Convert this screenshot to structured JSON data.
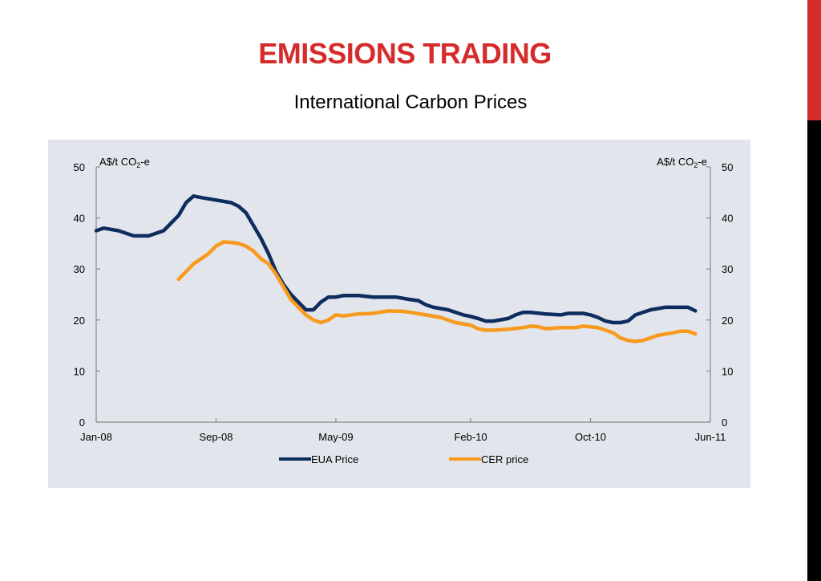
{
  "page": {
    "title": "EMISSIONS TRADING",
    "subtitle": "International Carbon Prices"
  },
  "colors": {
    "accent_red": "#d62b2b",
    "eua": "#0d2d5e",
    "cer": "#f79a1e",
    "panel": "#e2e5ec"
  },
  "chart_data": {
    "type": "line",
    "left_axis_unit": "A$/t CO2-e",
    "right_axis_unit": "A$/t CO2-e",
    "ylim": [
      0,
      50
    ],
    "yticks": [
      0,
      10,
      20,
      30,
      40,
      50
    ],
    "x_tick_labels": [
      "Jan-08",
      "Sep-08",
      "May-09",
      "Feb-10",
      "Oct-10",
      "Jun-11"
    ],
    "x_tick_months": [
      0,
      8,
      16,
      25,
      33,
      41
    ],
    "x_range_months": [
      0,
      41
    ],
    "grid": false,
    "legend_position": "bottom",
    "series": [
      {
        "name": "EUA Price",
        "color": "#0d2d5e",
        "points": [
          [
            0,
            37.5
          ],
          [
            0.5,
            38
          ],
          [
            1.5,
            37.5
          ],
          [
            2,
            37
          ],
          [
            2.5,
            36.5
          ],
          [
            3.5,
            36.5
          ],
          [
            4.5,
            37.5
          ],
          [
            5,
            39
          ],
          [
            5.5,
            40.5
          ],
          [
            6,
            43
          ],
          [
            6.5,
            44.3
          ],
          [
            7,
            44
          ],
          [
            8,
            43.5
          ],
          [
            9,
            43
          ],
          [
            9.5,
            42.3
          ],
          [
            10,
            41
          ],
          [
            10.5,
            38.5
          ],
          [
            11,
            36
          ],
          [
            11.5,
            33
          ],
          [
            12,
            29.5
          ],
          [
            12.5,
            27
          ],
          [
            13,
            25
          ],
          [
            13.5,
            23.5
          ],
          [
            14,
            22
          ],
          [
            14.5,
            22
          ],
          [
            15,
            23.5
          ],
          [
            15.5,
            24.5
          ],
          [
            16,
            24.5
          ],
          [
            16.5,
            24.8
          ],
          [
            17.5,
            24.8
          ],
          [
            18.5,
            24.5
          ],
          [
            19.5,
            24.5
          ],
          [
            20,
            24.5
          ],
          [
            21,
            24
          ],
          [
            21.5,
            23.8
          ],
          [
            22,
            23
          ],
          [
            22.5,
            22.5
          ],
          [
            23.5,
            22
          ],
          [
            24.5,
            21
          ],
          [
            25,
            20.7
          ],
          [
            25.5,
            20.3
          ],
          [
            26,
            19.8
          ],
          [
            26.5,
            19.8
          ],
          [
            27.5,
            20.3
          ],
          [
            28,
            21
          ],
          [
            28.5,
            21.5
          ],
          [
            29,
            21.5
          ],
          [
            30,
            21.2
          ],
          [
            31,
            21
          ],
          [
            31.5,
            21.3
          ],
          [
            32.5,
            21.3
          ],
          [
            33,
            21
          ],
          [
            33.5,
            20.5
          ],
          [
            34,
            19.8
          ],
          [
            34.5,
            19.5
          ],
          [
            35,
            19.5
          ],
          [
            35.5,
            19.8
          ],
          [
            36,
            21
          ],
          [
            36.5,
            21.5
          ],
          [
            37,
            22
          ],
          [
            38,
            22.5
          ],
          [
            39,
            22.5
          ],
          [
            39.5,
            22.5
          ],
          [
            40,
            21.8
          ]
        ]
      },
      {
        "name": "CER price",
        "color": "#f79a1e",
        "points": [
          [
            5.5,
            28
          ],
          [
            6,
            29.5
          ],
          [
            6.5,
            31
          ],
          [
            7,
            32
          ],
          [
            7.5,
            33
          ],
          [
            8,
            34.5
          ],
          [
            8.5,
            35.3
          ],
          [
            9,
            35.2
          ],
          [
            9.5,
            35
          ],
          [
            10,
            34.5
          ],
          [
            10.5,
            33.5
          ],
          [
            11,
            32
          ],
          [
            11.5,
            31
          ],
          [
            12,
            29
          ],
          [
            12.5,
            26.5
          ],
          [
            13,
            24
          ],
          [
            13.5,
            22.5
          ],
          [
            14,
            21
          ],
          [
            14.5,
            20
          ],
          [
            15,
            19.5
          ],
          [
            15.5,
            20
          ],
          [
            16,
            21
          ],
          [
            16.5,
            20.8
          ],
          [
            17.5,
            21.2
          ],
          [
            18.5,
            21.3
          ],
          [
            19.5,
            21.8
          ],
          [
            20.5,
            21.7
          ],
          [
            21,
            21.5
          ],
          [
            22,
            21
          ],
          [
            23,
            20.5
          ],
          [
            24,
            19.5
          ],
          [
            25,
            19
          ],
          [
            25.5,
            18.3
          ],
          [
            26,
            18
          ],
          [
            26.5,
            18
          ],
          [
            27.5,
            18.2
          ],
          [
            28.5,
            18.5
          ],
          [
            29,
            18.8
          ],
          [
            29.5,
            18.7
          ],
          [
            30,
            18.3
          ],
          [
            31,
            18.5
          ],
          [
            32,
            18.5
          ],
          [
            32.5,
            18.8
          ],
          [
            33.5,
            18.5
          ],
          [
            34.5,
            17.5
          ],
          [
            35,
            16.5
          ],
          [
            35.5,
            16
          ],
          [
            36,
            15.8
          ],
          [
            36.5,
            16
          ],
          [
            37,
            16.5
          ],
          [
            37.5,
            17
          ],
          [
            38.5,
            17.5
          ],
          [
            39,
            17.8
          ],
          [
            39.5,
            17.8
          ],
          [
            40,
            17.3
          ]
        ]
      }
    ]
  }
}
